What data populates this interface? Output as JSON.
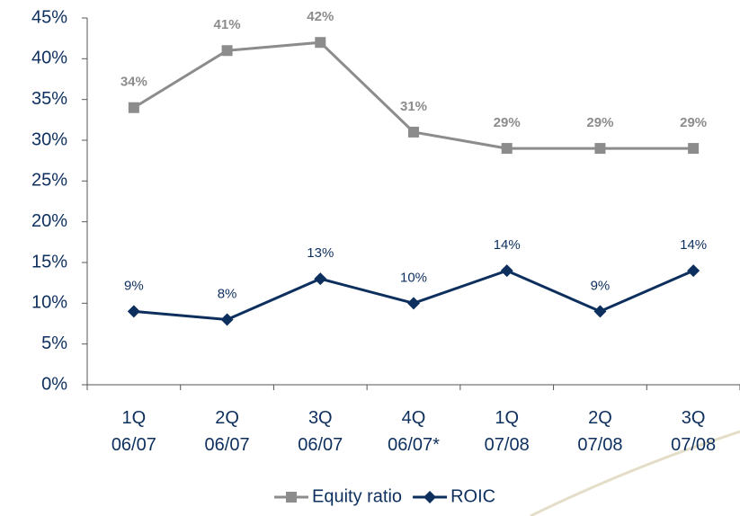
{
  "chart_data": {
    "type": "line",
    "categories": [
      "1Q 06/07",
      "2Q 06/07",
      "3Q 06/07",
      "4Q 06/07*",
      "1Q 07/08",
      "2Q 07/08",
      "3Q 07/08"
    ],
    "series": [
      {
        "name": "Equity ratio",
        "color": "#8c8c8c",
        "marker": "square",
        "values": [
          34,
          41,
          42,
          31,
          29,
          29,
          29
        ],
        "value_labels": [
          "34%",
          "41%",
          "42%",
          "31%",
          "29%",
          "29%",
          "29%"
        ]
      },
      {
        "name": "ROIC",
        "color": "#0d2f5e",
        "marker": "diamond",
        "values": [
          9,
          8,
          13,
          10,
          14,
          9,
          14
        ],
        "value_labels": [
          "9%",
          "8%",
          "13%",
          "10%",
          "14%",
          "9%",
          "14%"
        ]
      }
    ],
    "ylim": [
      0,
      45
    ],
    "yticks": [
      {
        "value": 0,
        "label": "0%"
      },
      {
        "value": 5,
        "label": "5%"
      },
      {
        "value": 10,
        "label": "10%"
      },
      {
        "value": 15,
        "label": "15%"
      },
      {
        "value": 20,
        "label": "20%"
      },
      {
        "value": 25,
        "label": "25%"
      },
      {
        "value": 30,
        "label": "30%"
      },
      {
        "value": 35,
        "label": "35%"
      },
      {
        "value": 40,
        "label": "40%"
      },
      {
        "value": 45,
        "label": "45%"
      }
    ],
    "grid": false,
    "legend": "bottom"
  }
}
